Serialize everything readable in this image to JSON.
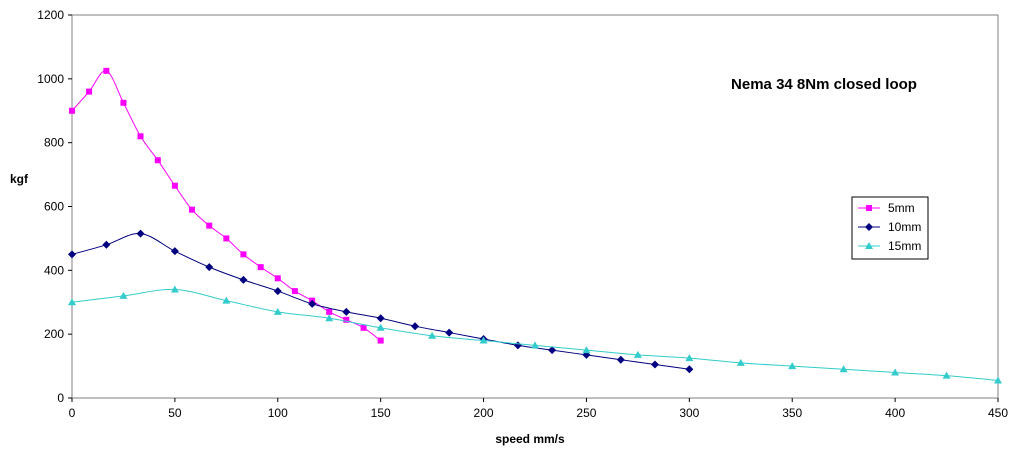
{
  "chart_data": {
    "type": "line",
    "title": "Nema 34 8Nm closed loop",
    "xlabel": "speed mm/s",
    "ylabel": "kgf",
    "xlim": [
      0,
      450
    ],
    "ylim": [
      0,
      1200
    ],
    "xticks": [
      "0",
      "50",
      "100",
      "150",
      "200",
      "250",
      "300",
      "350",
      "400",
      "450"
    ],
    "yticks": [
      "0",
      "200",
      "400",
      "600",
      "800",
      "1000",
      "1200"
    ],
    "grid": false,
    "legend_position": "right",
    "series": [
      {
        "name": "5mm",
        "color": "#ff00ff",
        "marker": "square",
        "x": [
          0,
          8.3,
          16.7,
          25,
          33.3,
          41.7,
          50,
          58.3,
          66.7,
          75,
          83.3,
          91.7,
          100,
          108.3,
          116.7,
          125,
          133.3,
          141.7,
          150
        ],
        "y": [
          900,
          960,
          1025,
          925,
          820,
          745,
          665,
          590,
          540,
          500,
          450,
          410,
          375,
          335,
          305,
          270,
          245,
          220,
          180
        ]
      },
      {
        "name": "10mm",
        "color": "#000080",
        "marker": "diamond",
        "x": [
          0,
          16.7,
          33.3,
          50,
          66.7,
          83.3,
          100,
          116.7,
          133.3,
          150,
          166.7,
          183.3,
          200,
          216.7,
          233.3,
          250,
          266.7,
          283.3,
          300
        ],
        "y": [
          450,
          480,
          515,
          460,
          410,
          370,
          335,
          295,
          270,
          250,
          225,
          205,
          185,
          165,
          150,
          135,
          120,
          105,
          90
        ]
      },
      {
        "name": "15mm",
        "color": "#33cccc",
        "marker": "triangle",
        "x": [
          0,
          25,
          50,
          75,
          100,
          125,
          150,
          175,
          200,
          225,
          250,
          275,
          300,
          325,
          350,
          375,
          400,
          425,
          450
        ],
        "y": [
          300,
          320,
          340,
          305,
          270,
          250,
          220,
          195,
          180,
          165,
          150,
          135,
          125,
          110,
          100,
          90,
          80,
          70,
          55
        ]
      }
    ]
  }
}
